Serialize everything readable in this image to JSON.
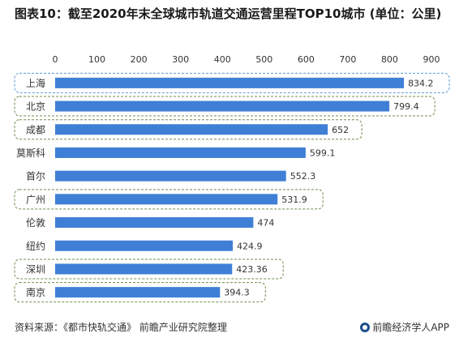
{
  "title": "图表10：截至2020年末全球城市轨道交通运营里程TOP10城市 (单位：公里)",
  "footer": {
    "source": "资料来源：《都市快轨交通》 前瞻产业研究院整理",
    "brand": "前瞻经济学人APP"
  },
  "colors": {
    "bar": "#3f7fd6",
    "highlight_blue": "#5b9bd5",
    "highlight_green": "#6f8f4e"
  },
  "chart_data": {
    "type": "bar",
    "orientation": "horizontal",
    "categories": [
      "上海",
      "北京",
      "成都",
      "莫斯科",
      "首尔",
      "广州",
      "伦敦",
      "纽约",
      "深圳",
      "南京"
    ],
    "values": [
      834.2,
      799.4,
      652,
      599.1,
      552.3,
      531.9,
      474,
      424.9,
      423.36,
      394.3
    ],
    "value_labels": [
      "834.2",
      "799.4",
      "652",
      "599.1",
      "552.3",
      "531.9",
      "474",
      "424.9",
      "423.36",
      "394.3"
    ],
    "x_ticks": [
      0,
      100,
      200,
      300,
      400,
      500,
      600,
      700,
      800,
      900
    ],
    "xlim": [
      0,
      900
    ],
    "axis_position": "top",
    "grid": false,
    "highlighted": [
      {
        "category": "上海",
        "style": "blue-dashed"
      },
      {
        "category": "北京",
        "style": "green-dashed"
      },
      {
        "category": "成都",
        "style": "green-dashed"
      },
      {
        "category": "广州",
        "style": "green-dashed"
      },
      {
        "category": "深圳",
        "style": "green-dashed"
      },
      {
        "category": "南京",
        "style": "green-dashed"
      }
    ]
  }
}
